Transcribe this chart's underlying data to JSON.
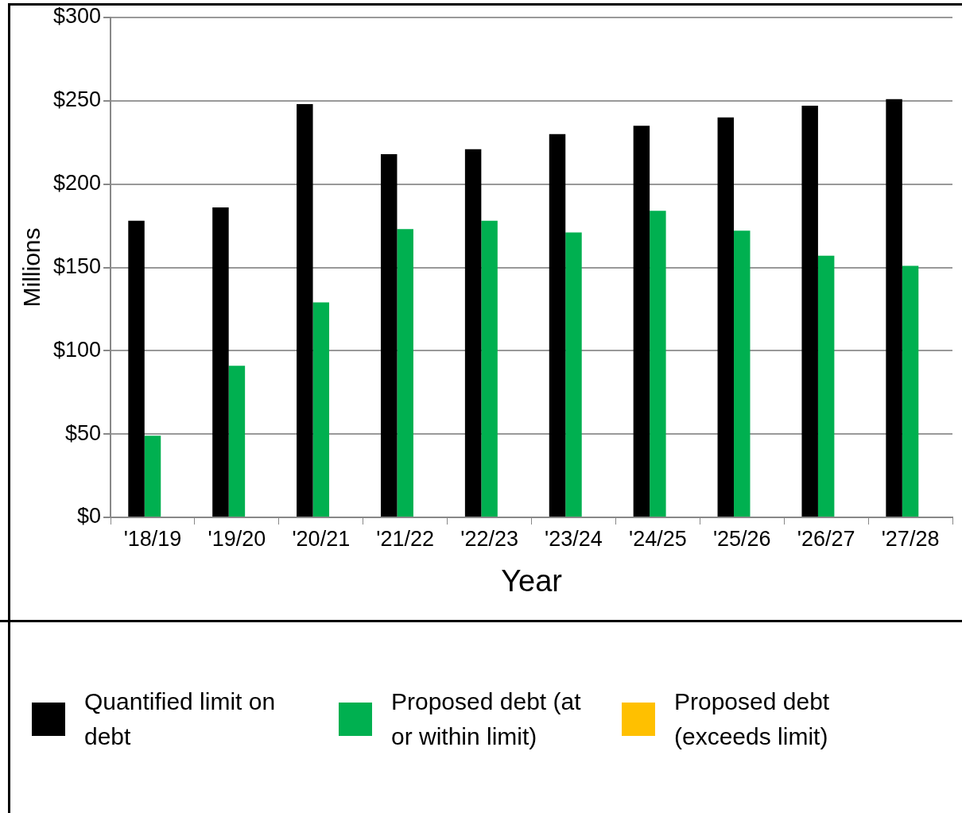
{
  "chart_data": {
    "type": "bar",
    "xlabel": "Year",
    "ylabel": "Millions",
    "categories": [
      "'18/19",
      "'19/20",
      "'20/21",
      "'21/22",
      "'22/23",
      "'23/24",
      "'24/25",
      "'25/26",
      "'26/27",
      "'27/28"
    ],
    "series": [
      {
        "name": "Quantified limit on debt",
        "color": "#000000",
        "values": [
          178,
          186,
          248,
          218,
          221,
          230,
          235,
          240,
          247,
          251
        ]
      },
      {
        "name": "Proposed debt (at or within limit)",
        "color": "#00b050",
        "values": [
          49,
          91,
          129,
          173,
          178,
          171,
          184,
          172,
          157,
          151
        ]
      },
      {
        "name": "Proposed debt (exceeds limit)",
        "color": "#ffc000",
        "values": [
          null,
          null,
          null,
          null,
          null,
          null,
          null,
          null,
          null,
          null
        ]
      }
    ],
    "ylim": [
      0,
      300
    ],
    "yticks": [
      {
        "value": 0,
        "label": "$0"
      },
      {
        "value": 50,
        "label": "$50"
      },
      {
        "value": 100,
        "label": "$100"
      },
      {
        "value": 150,
        "label": "$150"
      },
      {
        "value": 200,
        "label": "$200"
      },
      {
        "value": 250,
        "label": "$250"
      },
      {
        "value": 300,
        "label": "$300"
      }
    ],
    "grid": "y",
    "legend": "bottom"
  }
}
